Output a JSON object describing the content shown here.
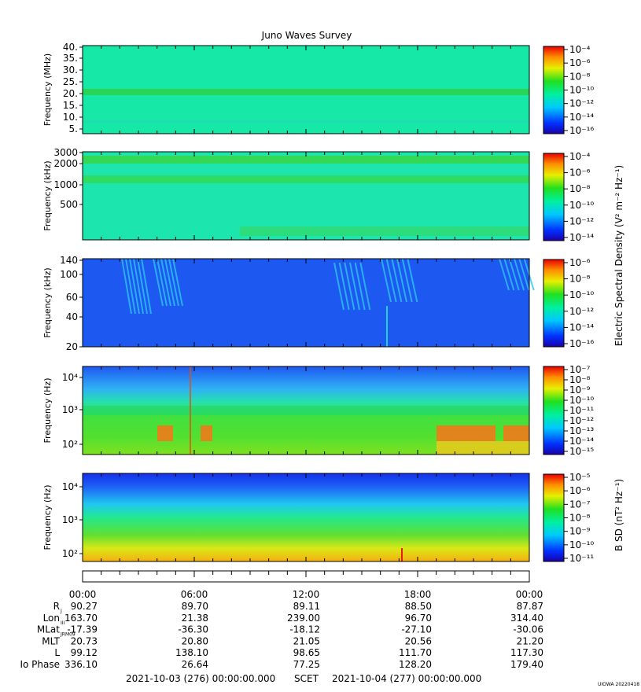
{
  "title": "Juno Waves Survey",
  "cbar_label_top": "Electric Spectral Density (V² m⁻² Hz⁻¹)",
  "cbar_label_bottom": "B SD (nT² Hz⁻¹)",
  "chart_data": [
    {
      "type": "heatmap",
      "ylabel": "Frequency (MHz)",
      "yticks": [
        "40.",
        "35.",
        "30.",
        "25.",
        "20.",
        "15.",
        "10.",
        "5."
      ],
      "cbar_ticks": [
        "10⁻⁴",
        "10⁻⁶",
        "10⁻⁸",
        "10⁻¹⁰",
        "10⁻¹²",
        "10⁻¹⁴",
        "10⁻¹⁶"
      ],
      "colors": {
        "background": "#16e8a8",
        "band": "#2ad34d"
      }
    },
    {
      "type": "heatmap",
      "ylabel": "Frequency (kHz)",
      "yticks": [
        "3000",
        "2000",
        "1000",
        "500"
      ],
      "cbar_ticks": [
        "10⁻⁴",
        "10⁻⁶",
        "10⁻⁸",
        "10⁻¹⁰",
        "10⁻¹²",
        "10⁻¹⁴"
      ],
      "colors": {
        "background": "#1ce6ad",
        "band": "#33d956"
      }
    },
    {
      "type": "heatmap",
      "ylabel": "Frequency (kHz)",
      "yticks": [
        "140",
        "100",
        "60",
        "40",
        "20"
      ],
      "cbar_ticks": [
        "10⁻⁶",
        "10⁻⁸",
        "10⁻¹⁰",
        "10⁻¹²",
        "10⁻¹⁴",
        "10⁻¹⁶"
      ],
      "colors": {
        "background": "#1d58f0",
        "emission": "#2cc4f4"
      }
    },
    {
      "type": "heatmap",
      "ylabel": "Frequency (Hz)",
      "yticks": [
        "10⁴",
        "10³",
        "10²"
      ],
      "cbar_ticks": [
        "10⁻⁷",
        "10⁻⁸",
        "10⁻⁹",
        "10⁻¹⁰",
        "10⁻¹¹",
        "10⁻¹²",
        "10⁻¹³",
        "10⁻¹⁴",
        "10⁻¹⁵"
      ],
      "colors": {
        "top": "#2a6df5",
        "mid": "#24e29a",
        "low": "#3fe03a",
        "hot": "#f07a1a"
      }
    },
    {
      "type": "heatmap",
      "ylabel": "Frequency (Hz)",
      "yticks": [
        "10⁴",
        "10³",
        "10²"
      ],
      "cbar_ticks": [
        "10⁻⁵",
        "10⁻⁶",
        "10⁻⁷",
        "10⁻⁸",
        "10⁻⁹",
        "10⁻¹⁰",
        "10⁻¹¹"
      ],
      "colors": {
        "top": "#1a3cf0",
        "mid": "#22e88c",
        "low": "#f2e21a"
      }
    }
  ],
  "time_ticks": [
    "00:00",
    "06:00",
    "12:00",
    "18:00",
    "00:00"
  ],
  "ephemeris": [
    {
      "label": "R",
      "sub": "J",
      "values": [
        "90.27",
        "89.70",
        "89.11",
        "88.50",
        "87.87"
      ]
    },
    {
      "label": "Lon",
      "sub": "III",
      "values": [
        "163.70",
        "21.38",
        "239.00",
        "96.70",
        "314.40"
      ]
    },
    {
      "label": "MLat",
      "sub": "JRM09",
      "values": [
        "-17.39",
        "-36.30",
        "-18.12",
        "-27.10",
        "-30.06"
      ]
    },
    {
      "label": "MLT",
      "sub": "",
      "values": [
        "20.73",
        "20.80",
        "21.05",
        "20.56",
        "21.20"
      ]
    },
    {
      "label": "L",
      "sub": "",
      "values": [
        "99.12",
        "138.10",
        "98.65",
        "111.70",
        "117.30"
      ]
    },
    {
      "label": "Io Phase",
      "sub": "",
      "values": [
        "336.10",
        "26.64",
        "77.25",
        "128.20",
        "179.40"
      ]
    }
  ],
  "footer": {
    "start": "2021-10-03 (276) 00:00:00.000",
    "scet": "SCET",
    "end": "2021-10-04 (277) 00:00:00.000"
  },
  "credit": "UIOWA 20220418"
}
